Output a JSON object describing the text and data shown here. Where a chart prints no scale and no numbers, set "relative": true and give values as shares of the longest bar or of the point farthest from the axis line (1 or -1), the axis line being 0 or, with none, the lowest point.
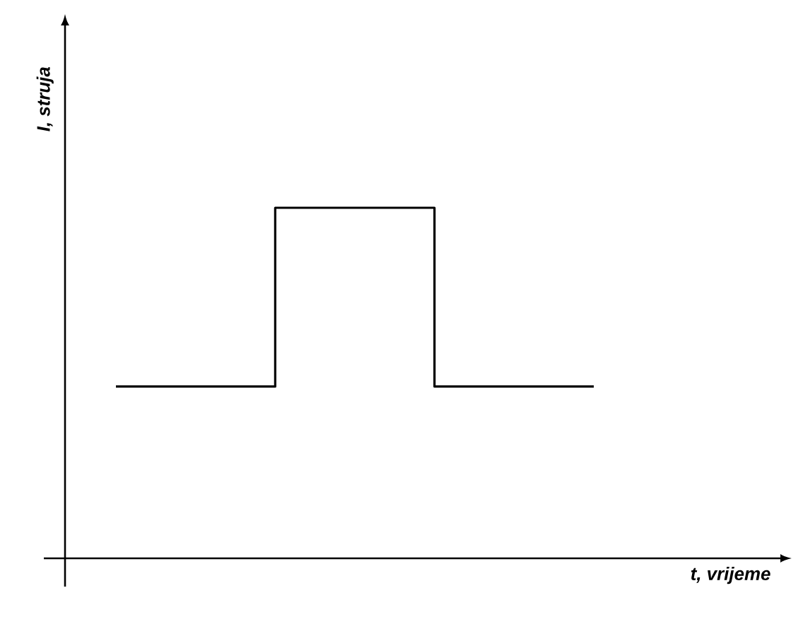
{
  "chart_data": {
    "type": "step",
    "relative": true,
    "xlabel": "t, vrijeme",
    "ylabel": "I, struja",
    "categories": [
      null,
      null,
      null,
      null
    ],
    "series": [
      {
        "color": "#000000",
        "values": [
          0.49,
          1,
          0.49,
          0.49
        ]
      }
    ]
  }
}
